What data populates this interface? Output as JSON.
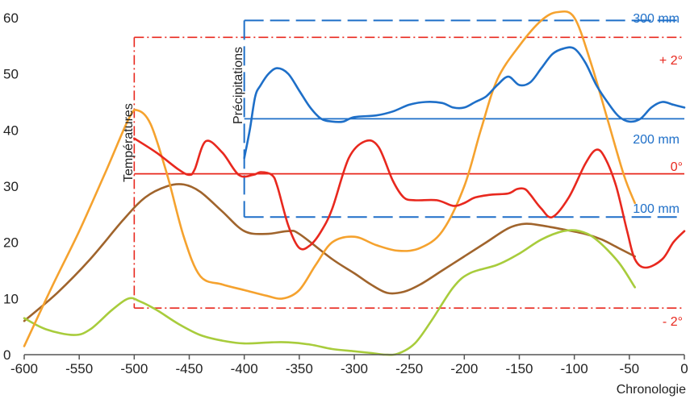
{
  "chart_data": {
    "type": "line",
    "xlabel": "Chronologie",
    "x_ticks": [
      "-600",
      "-550",
      "-500",
      "-450",
      "-400",
      "-350",
      "-300",
      "-250",
      "-200",
      "-150",
      "-100",
      "-50",
      "0"
    ],
    "y_ticks": [
      "0",
      "10",
      "20",
      "30",
      "40",
      "50",
      "60"
    ],
    "xlim": [
      -600,
      0
    ],
    "ylim": [
      0,
      62
    ],
    "grid": false,
    "temperature_label": "Températures",
    "precipitation_label": "Précipitations",
    "reference_labels": {
      "precip_300": "300 mm",
      "precip_200": "200 mm",
      "precip_100": "100 mm",
      "temp_plus2": "+ 2°",
      "temp_zero": "0°",
      "temp_minus2": "- 2°"
    },
    "colors": {
      "orange": "#f5a22e",
      "brown": "#a0642c",
      "green": "#a8cc3c",
      "red": "#e8281e",
      "blue": "#1e6fc8",
      "axis": "#555555"
    },
    "reference_lines": {
      "precip_300": 59.5,
      "precip_200": 42,
      "precip_100": 24.5,
      "temp_plus2": 56.5,
      "temp_zero": 32.2,
      "temp_minus2": 8.3,
      "temp_box_x": -500,
      "precip_box_x": -400
    },
    "series": [
      {
        "color": "orange",
        "x": [
          -600,
          -575,
          -550,
          -525,
          -505,
          -497,
          -485,
          -470,
          -455,
          -440,
          -420,
          -400,
          -380,
          -365,
          -350,
          -335,
          -320,
          -300,
          -280,
          -260,
          -240,
          -220,
          -200,
          -185,
          -170,
          -150,
          -130,
          -115,
          -100,
          -85,
          -70,
          -55,
          -45
        ],
        "values": [
          1.5,
          12,
          22,
          33,
          42,
          43.5,
          41,
          32,
          21,
          14,
          12.5,
          11.5,
          10.5,
          10,
          11.5,
          16,
          20,
          21,
          19.5,
          18.5,
          19,
          22,
          30,
          40,
          49,
          55,
          59.5,
          61,
          60,
          52,
          42,
          32,
          27
        ]
      },
      {
        "color": "brown",
        "x": [
          -600,
          -570,
          -540,
          -510,
          -490,
          -470,
          -455,
          -440,
          -420,
          -400,
          -380,
          -360,
          -350,
          -320,
          -300,
          -285,
          -270,
          -255,
          -240,
          -220,
          -200,
          -180,
          -160,
          -145,
          -130,
          -110,
          -90,
          -75,
          -60,
          -45
        ],
        "values": [
          6,
          11,
          17,
          24,
          28,
          30,
          30.3,
          29,
          25.5,
          22,
          21.5,
          22,
          21.5,
          17,
          14.5,
          12.5,
          11,
          11.2,
          12.5,
          15,
          17.5,
          20,
          22.5,
          23.3,
          23,
          22.3,
          21.5,
          20.5,
          19,
          17.5
        ]
      },
      {
        "color": "green",
        "x": [
          -600,
          -580,
          -555,
          -540,
          -520,
          -505,
          -495,
          -480,
          -460,
          -440,
          -420,
          -400,
          -375,
          -360,
          -340,
          -320,
          -300,
          -285,
          -272,
          -260,
          -245,
          -230,
          -210,
          -195,
          -170,
          -150,
          -130,
          -110,
          -95,
          -80,
          -60,
          -45
        ],
        "values": [
          6.5,
          4.5,
          3.5,
          4.5,
          8,
          10,
          9.5,
          8,
          5.5,
          3.5,
          2.5,
          2,
          2.2,
          2.2,
          1.8,
          1,
          0.6,
          0.3,
          0,
          0.2,
          2,
          6,
          12,
          14.5,
          16,
          18,
          20.5,
          22,
          22,
          20.5,
          16.5,
          12
        ]
      },
      {
        "color": "red",
        "x": [
          -500,
          -480,
          -460,
          -450,
          -445,
          -435,
          -420,
          -405,
          -392,
          -385,
          -375,
          -370,
          -360,
          -350,
          -340,
          -330,
          -320,
          -305,
          -290,
          -278,
          -265,
          -255,
          -245,
          -225,
          -210,
          -200,
          -190,
          -175,
          -160,
          -152,
          -145,
          -140,
          -130,
          -120,
          -105,
          -90,
          -80,
          -72,
          -62,
          -52,
          -45,
          -35,
          -20,
          -10,
          0
        ],
        "values": [
          38.5,
          36,
          33,
          32,
          33,
          38,
          36,
          32,
          32,
          32.5,
          32,
          30,
          23,
          19,
          19.5,
          22,
          26,
          35,
          38,
          37,
          31,
          28,
          27.5,
          27.5,
          26.5,
          27,
          28,
          28.5,
          28.7,
          29.5,
          29.5,
          28.5,
          26,
          24.5,
          28,
          34,
          36.5,
          35,
          30,
          22,
          17,
          15.5,
          17,
          20,
          22
        ]
      },
      {
        "color": "blue",
        "x": [
          -400,
          -395,
          -390,
          -385,
          -378,
          -370,
          -360,
          -350,
          -340,
          -330,
          -320,
          -310,
          -300,
          -280,
          -265,
          -250,
          -235,
          -220,
          -210,
          -200,
          -190,
          -180,
          -170,
          -160,
          -150,
          -140,
          -130,
          -120,
          -110,
          -100,
          -90,
          -80,
          -70,
          -60,
          -50,
          -40,
          -30,
          -20,
          -10,
          0
        ],
        "values": [
          35,
          40,
          46,
          48,
          50,
          51,
          50,
          47,
          44,
          42,
          41.5,
          41.5,
          42.3,
          42.6,
          43.3,
          44.5,
          45,
          44.8,
          44,
          44,
          45,
          46,
          48,
          49.5,
          48,
          48.5,
          51,
          53.5,
          54.5,
          54.5,
          52,
          48,
          45,
          42.5,
          41.5,
          42,
          44,
          45,
          44.5,
          44
        ]
      }
    ]
  }
}
